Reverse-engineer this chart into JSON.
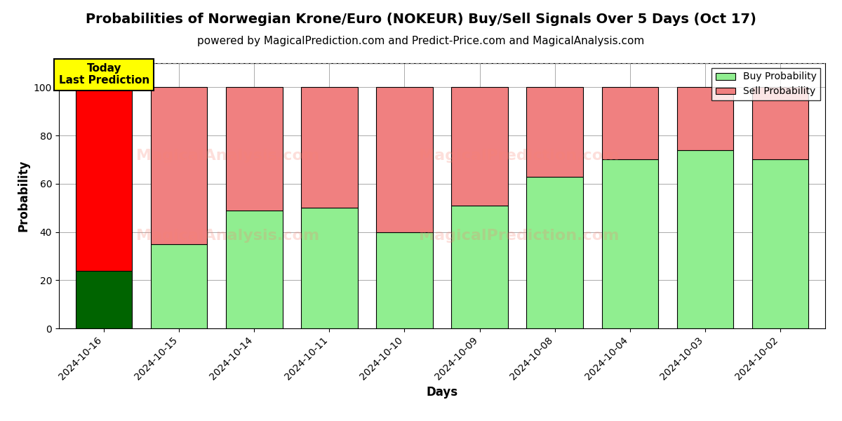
{
  "title": "Probabilities of Norwegian Krone/Euro (NOKEUR) Buy/Sell Signals Over 5 Days (Oct 17)",
  "subtitle": "powered by MagicalPrediction.com and Predict-Price.com and MagicalAnalysis.com",
  "xlabel": "Days",
  "ylabel": "Probability",
  "categories": [
    "2024-10-16",
    "2024-10-15",
    "2024-10-14",
    "2024-10-11",
    "2024-10-10",
    "2024-10-09",
    "2024-10-08",
    "2024-10-04",
    "2024-10-03",
    "2024-10-02"
  ],
  "buy_values": [
    24,
    35,
    49,
    50,
    40,
    51,
    63,
    70,
    74,
    70
  ],
  "sell_values": [
    76,
    65,
    51,
    50,
    60,
    49,
    37,
    30,
    26,
    30
  ],
  "buy_colors_first": "#006400",
  "sell_colors_first": "#FF0000",
  "buy_color": "#90EE90",
  "sell_color": "#F08080",
  "bar_edge_color": "black",
  "bar_edge_width": 0.8,
  "today_label_text": "Today\nLast Prediction",
  "today_box_color": "#FFFF00",
  "legend_buy": "Buy Probability",
  "legend_sell": "Sell Probability",
  "ylim": [
    0,
    110
  ],
  "yticks": [
    0,
    20,
    40,
    60,
    80,
    100
  ],
  "dashed_line_y": 110,
  "title_fontsize": 14,
  "subtitle_fontsize": 11,
  "axis_label_fontsize": 12,
  "tick_fontsize": 10,
  "background_color": "#ffffff",
  "grid_color": "#aaaaaa"
}
